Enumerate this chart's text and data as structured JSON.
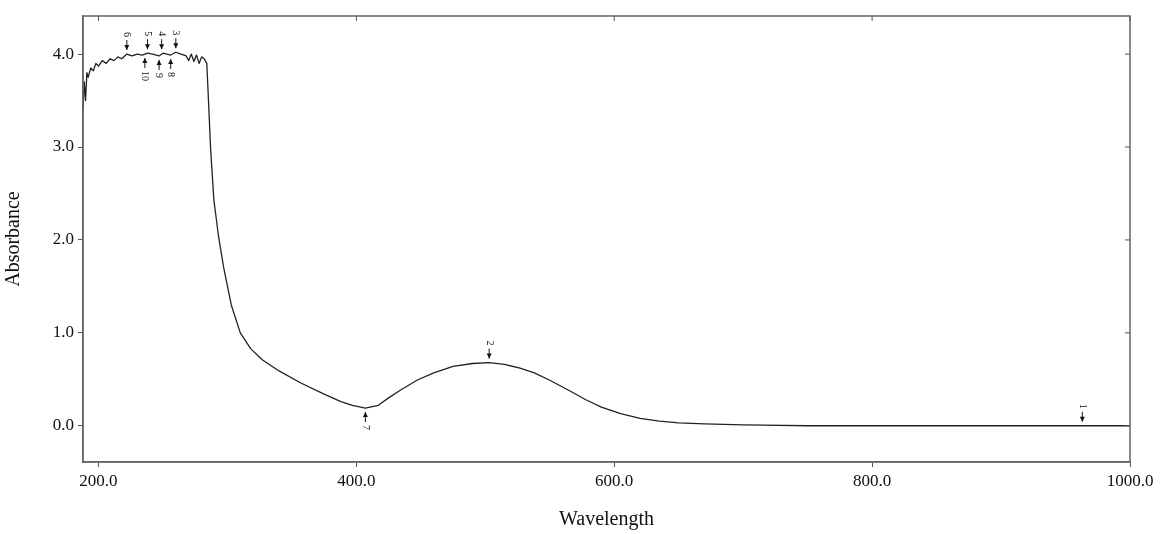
{
  "chart_data": {
    "type": "line",
    "xlabel": "Wavelength",
    "ylabel": "Absorbance",
    "xlim": [
      188,
      1000
    ],
    "ylim": [
      -0.39,
      4.41
    ],
    "xticks": [
      {
        "value": 200,
        "label": "200.0"
      },
      {
        "value": 400,
        "label": "400.0"
      },
      {
        "value": 600,
        "label": "600.0"
      },
      {
        "value": 800,
        "label": "800.0"
      },
      {
        "value": 1000,
        "label": "1000.0"
      }
    ],
    "yticks": [
      {
        "value": 0,
        "label": "0.0"
      },
      {
        "value": 1,
        "label": "1.0"
      },
      {
        "value": 2,
        "label": "2.0"
      },
      {
        "value": 3,
        "label": "3.0"
      },
      {
        "value": 4,
        "label": "4.0"
      }
    ],
    "grid": false,
    "legend": false,
    "marker": "none",
    "line_style": "solid",
    "series": [
      {
        "color": "#222222",
        "x": [
          188,
          189,
          190,
          191,
          192,
          194,
          196,
          198,
          200,
          203,
          206,
          209,
          212,
          215,
          218,
          222,
          226,
          230,
          234,
          238,
          242,
          247,
          250,
          256,
          260,
          264,
          268,
          270,
          272,
          274,
          276,
          278,
          280,
          282,
          284,
          285,
          287,
          289.5,
          293,
          297,
          303,
          310,
          318,
          327,
          340,
          357,
          375,
          388,
          397,
          407,
          417,
          425,
          435,
          447,
          460,
          475,
          490,
          503,
          515,
          527,
          538,
          550,
          565,
          578,
          590,
          605,
          620,
          635,
          650,
          670,
          700,
          750,
          800,
          850,
          900,
          963,
          1000
        ],
        "values": [
          3.4,
          3.7,
          3.5,
          3.8,
          3.75,
          3.85,
          3.82,
          3.9,
          3.87,
          3.93,
          3.9,
          3.95,
          3.93,
          3.97,
          3.95,
          4.0,
          3.98,
          4.0,
          3.99,
          4.01,
          4.0,
          3.98,
          4.01,
          3.99,
          4.02,
          4.0,
          3.98,
          3.93,
          4.0,
          3.92,
          3.99,
          3.9,
          3.97,
          3.95,
          3.9,
          3.6,
          2.97,
          2.43,
          2.05,
          1.71,
          1.3,
          1.0,
          0.83,
          0.71,
          0.59,
          0.46,
          0.34,
          0.26,
          0.22,
          0.19,
          0.22,
          0.3,
          0.39,
          0.49,
          0.57,
          0.64,
          0.67,
          0.68,
          0.66,
          0.62,
          0.57,
          0.49,
          0.38,
          0.28,
          0.2,
          0.13,
          0.08,
          0.05,
          0.03,
          0.02,
          0.01,
          0.0,
          0.0,
          0.0,
          0.0,
          0.0,
          0.0
        ]
      }
    ],
    "annotations": [
      {
        "text": "1",
        "x": 963,
        "y": 0.0
      },
      {
        "text": "2",
        "x": 503,
        "y": 0.68
      },
      {
        "text": "3",
        "x": 260,
        "y": 4.02
      },
      {
        "text": "4",
        "x": 249,
        "y": 4.01
      },
      {
        "text": "5",
        "x": 238,
        "y": 4.01
      },
      {
        "text": "6",
        "x": 222,
        "y": 4.0
      },
      {
        "text": "7",
        "x": 407,
        "y": 0.19
      },
      {
        "text": "8",
        "x": 256,
        "y": 3.99
      },
      {
        "text": "9",
        "x": 247,
        "y": 3.98
      },
      {
        "text": "10",
        "x": 236,
        "y": 4.0
      }
    ]
  }
}
